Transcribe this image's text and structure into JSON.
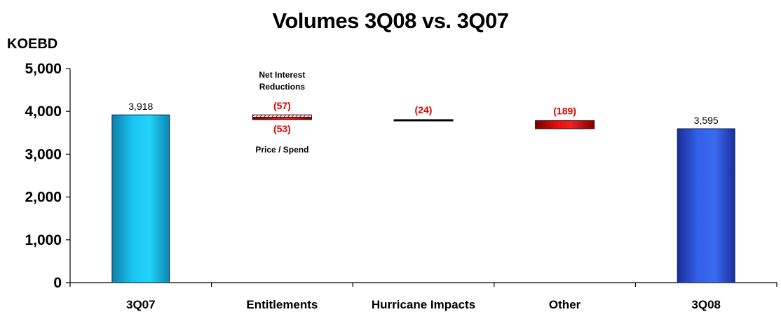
{
  "chart_data": {
    "type": "bar",
    "subtype": "waterfall",
    "title": "Volumes 3Q08 vs. 3Q07",
    "ylabel": "KOEBD",
    "ylim": [
      0,
      5000
    ],
    "yticks": [
      "0",
      "1,000",
      "2,000",
      "3,000",
      "4,000",
      "5,000"
    ],
    "categories": [
      "3Q07",
      "Entitlements",
      "Hurricane Impacts",
      "Other",
      "3Q08"
    ],
    "bars": [
      {
        "category": "3Q07",
        "kind": "total",
        "value": 3918,
        "label": "3,918",
        "color": "#1AB8E0"
      },
      {
        "category": "Entitlements",
        "kind": "delta",
        "segments": [
          {
            "value": -57,
            "label": "(57)",
            "annotation": [
              "Net Interest",
              "Reductions"
            ],
            "position": "above"
          },
          {
            "value": -53,
            "label": "(53)",
            "annotation": [
              "Price / Spend"
            ],
            "position": "below"
          }
        ],
        "color": "#CC0000"
      },
      {
        "category": "Hurricane Impacts",
        "kind": "delta",
        "value": -24,
        "label": "(24)",
        "color": "#000000"
      },
      {
        "category": "Other",
        "kind": "delta",
        "value": -189,
        "label": "(189)",
        "color": "#CC0000"
      },
      {
        "category": "3Q08",
        "kind": "total",
        "value": 3595,
        "label": "3,595",
        "color": "#2A50D8"
      }
    ],
    "grid": false,
    "label_color_negative": "#E00000"
  }
}
